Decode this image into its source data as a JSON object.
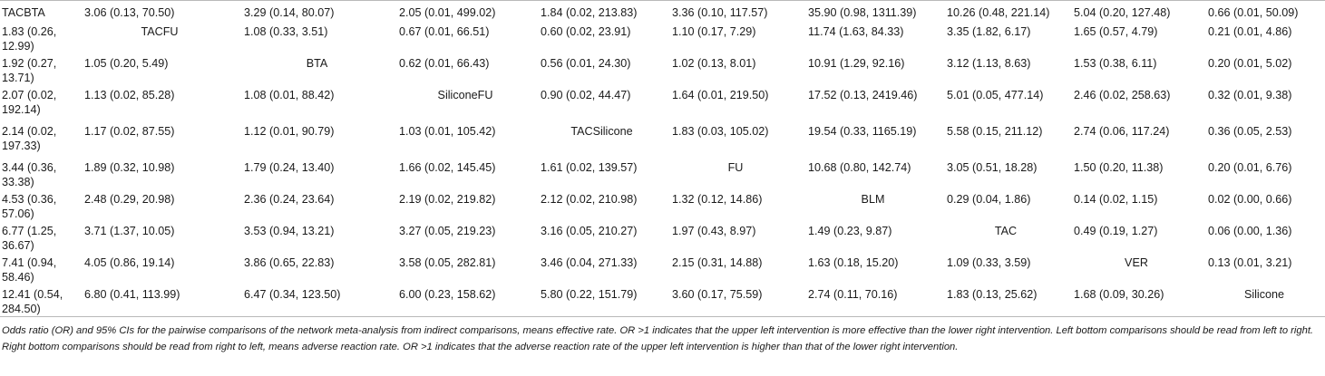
{
  "table": {
    "rows": [
      [
        "TACBTA",
        "3.06 (0.13, 70.50)",
        "3.29 (0.14, 80.07)",
        "2.05 (0.01, 499.02)",
        "1.84 (0.02, 213.83)",
        "3.36 (0.10, 117.57)",
        "35.90 (0.98, 1311.39)",
        "10.26 (0.48, 221.14)",
        "5.04 (0.20, 127.48)",
        "0.66 (0.01, 50.09)"
      ],
      [
        "1.83 (0.26, 12.99)",
        "TACFU",
        "1.08 (0.33, 3.51)",
        "0.67 (0.01, 66.51)",
        "0.60 (0.02, 23.91)",
        "1.10 (0.17, 7.29)",
        "11.74 (1.63, 84.33)",
        "3.35 (1.82, 6.17)",
        "1.65 (0.57, 4.79)",
        "0.21 (0.01, 4.86)"
      ],
      [
        "1.92 (0.27, 13.71)",
        "1.05 (0.20, 5.49)",
        "BTA",
        "0.62 (0.01, 66.43)",
        "0.56 (0.01, 24.30)",
        "1.02 (0.13, 8.01)",
        "10.91 (1.29, 92.16)",
        "3.12 (1.13, 8.63)",
        "1.53 (0.38, 6.11)",
        "0.20 (0.01, 5.02)"
      ],
      [
        "2.07 (0.02, 192.14)",
        "1.13 (0.02, 85.28)",
        "1.08 (0.01, 88.42)",
        "SiliconeFU",
        "0.90 (0.02, 44.47)",
        "1.64 (0.01, 219.50)",
        "17.52 (0.13, 2419.46)",
        "5.01 (0.05, 477.14)",
        "2.46 (0.02, 258.63)",
        "0.32 (0.01, 9.38)"
      ],
      [
        "2.14 (0.02, 197.33)",
        "1.17 (0.02, 87.55)",
        "1.12 (0.01, 90.79)",
        "1.03 (0.01, 105.42)",
        "TACSilicone",
        "1.83 (0.03, 105.02)",
        "19.54 (0.33, 1165.19)",
        "5.58 (0.15, 211.12)",
        "2.74 (0.06, 117.24)",
        "0.36 (0.05, 2.53)"
      ],
      [
        "3.44 (0.36, 33.38)",
        "1.89 (0.32, 10.98)",
        "1.79 (0.24, 13.40)",
        "1.66 (0.02, 145.45)",
        "1.61 (0.02, 139.57)",
        "FU",
        "10.68 (0.80, 142.74)",
        "3.05 (0.51, 18.28)",
        "1.50 (0.20, 11.38)",
        "0.20 (0.01, 6.76)"
      ],
      [
        "4.53 (0.36, 57.06)",
        "2.48 (0.29, 20.98)",
        "2.36 (0.24, 23.64)",
        "2.19 (0.02, 219.82)",
        "2.12 (0.02, 210.98)",
        "1.32 (0.12, 14.86)",
        "BLM",
        "0.29 (0.04, 1.86)",
        "0.14 (0.02, 1.15)",
        "0.02 (0.00, 0.66)"
      ],
      [
        "6.77 (1.25, 36.67)",
        "3.71 (1.37, 10.05)",
        "3.53 (0.94, 13.21)",
        "3.27 (0.05, 219.23)",
        "3.16 (0.05, 210.27)",
        "1.97 (0.43, 8.97)",
        "1.49 (0.23, 9.87)",
        "TAC",
        "0.49 (0.19, 1.27)",
        "0.06 (0.00, 1.36)"
      ],
      [
        "7.41 (0.94, 58.46)",
        "4.05 (0.86, 19.14)",
        "3.86 (0.65, 22.83)",
        "3.58 (0.05, 282.81)",
        "3.46 (0.04, 271.33)",
        "2.15 (0.31, 14.88)",
        "1.63 (0.18, 15.20)",
        "1.09 (0.33, 3.59)",
        "VER",
        "0.13 (0.01, 3.21)"
      ],
      [
        "12.41 (0.54, 284.50)",
        "6.80 (0.41, 113.99)",
        "6.47 (0.34, 123.50)",
        "6.00 (0.23, 158.62)",
        "5.80 (0.22, 151.79)",
        "3.60 (0.17, 75.59)",
        "2.74 (0.11, 70.16)",
        "1.83 (0.13, 25.62)",
        "1.68 (0.09, 30.26)",
        "Silicone"
      ]
    ],
    "footnote": "Odds ratio (OR) and 95% CIs for the pairwise comparisons of the network meta-analysis from indirect comparisons, means effective rate. OR >1 indicates that the upper left intervention is more effective than the lower right intervention. Left bottom comparisons should be read from left to right. Right bottom comparisons should be read from right to left, means adverse reaction rate. OR >1 indicates that the adverse reaction rate of the upper left intervention is higher than that of the lower right intervention."
  }
}
